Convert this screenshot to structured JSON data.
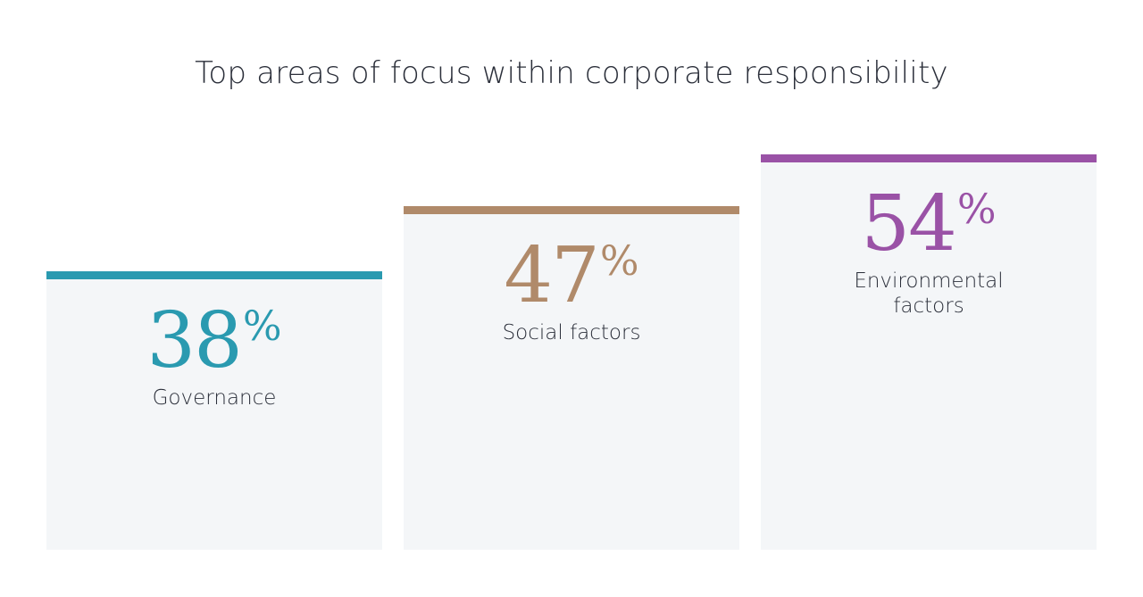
{
  "title": "Top areas of focus within corporate responsibility",
  "chart_data": {
    "type": "bar",
    "title": "Top areas of focus within corporate responsibility",
    "categories": [
      "Governance",
      "Social factors",
      "Environmental factors"
    ],
    "values": [
      38,
      47,
      54
    ],
    "unit": "%",
    "colors": [
      "#2a9ab0",
      "#b08a6a",
      "#9a52a6"
    ],
    "bar_fill": "#f4f6f8",
    "label_lines": [
      [
        "Governance"
      ],
      [
        "Social factors"
      ],
      [
        "Environmental",
        "factors"
      ]
    ],
    "grid": false,
    "legend": "none"
  }
}
